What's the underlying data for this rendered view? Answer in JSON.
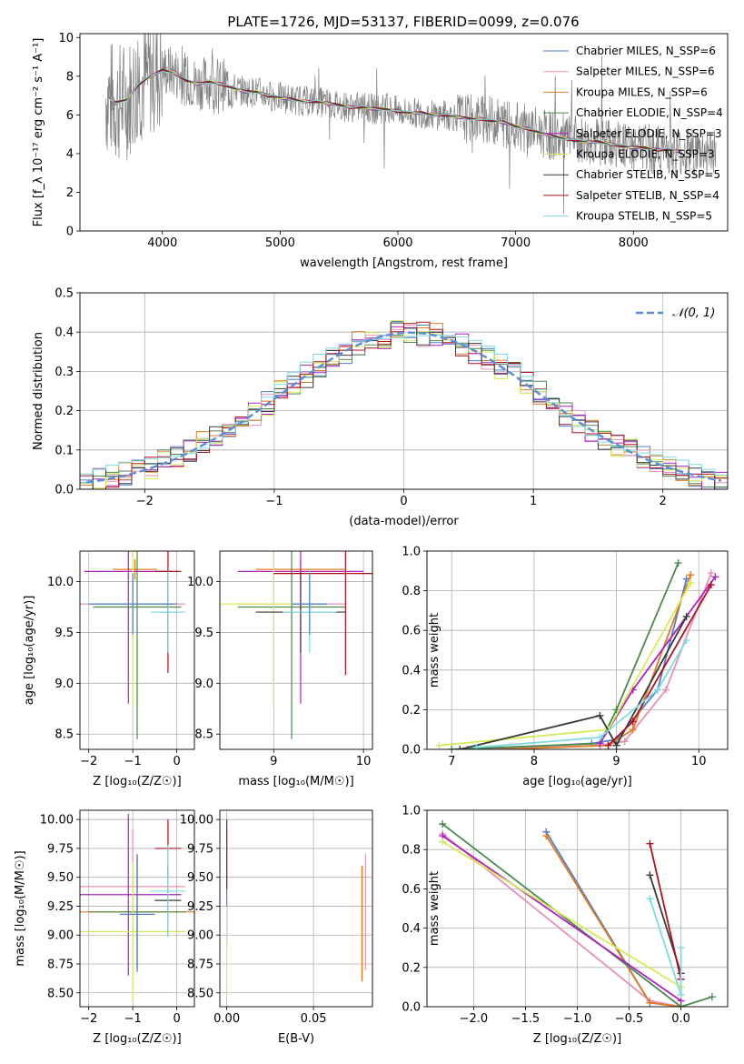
{
  "chart_data": [
    {
      "type": "line",
      "title": "PLATE=1726, MJD=53137, FIBERID=0099, z=0.076",
      "xlabel": "wavelength [Angstrom, rest frame]",
      "ylabel": "Flux [f_λ 10⁻¹⁷ erg cm⁻² s⁻¹ A⁻¹]",
      "xlim": [
        3300,
        8800
      ],
      "ylim": [
        0,
        10.2
      ],
      "xticks": [
        "4000",
        "5000",
        "6000",
        "7000",
        "8000"
      ],
      "yticks": [
        "0",
        "2",
        "4",
        "6",
        "8",
        "10"
      ],
      "legend_position": "top-right",
      "legend": [
        {
          "label": "Chabrier MILES, N_SSP=6",
          "color": "#4f7fd0"
        },
        {
          "label": "Salpeter MILES, N_SSP=6",
          "color": "#e890b8"
        },
        {
          "label": "Kroupa MILES, N_SSP=6",
          "color": "#e07c20"
        },
        {
          "label": "Chabrier ELODIE, N_SSP=4",
          "color": "#4a8a50"
        },
        {
          "label": "Salpeter ELODIE, N_SSP=3",
          "color": "#b020c0"
        },
        {
          "label": "Kroupa ELODIE, N_SSP=3",
          "color": "#d4ec58"
        },
        {
          "label": "Chabrier STELIB, N_SSP=5",
          "color": "#3a3a3a"
        },
        {
          "label": "Salpeter STELIB, N_SSP=4",
          "color": "#b01020"
        },
        {
          "label": "Kroupa STELIB, N_SSP=5",
          "color": "#7fdbe0"
        }
      ],
      "data_color": "#808080",
      "x": [
        3550,
        3600,
        3700,
        3800,
        3900,
        4000,
        4100,
        4200,
        4300,
        4400,
        4500,
        4600,
        4700,
        4800,
        4900,
        5000,
        5100,
        5200,
        5300,
        5400,
        5500,
        5600,
        5700,
        5800,
        5900,
        6000,
        6100,
        6200,
        6300,
        6400,
        6500,
        6600,
        6700,
        6800,
        6900,
        7000,
        7100,
        7200,
        7300,
        7400,
        7500,
        7600,
        7700,
        7800,
        7900,
        8000,
        8100,
        8200,
        8300,
        8400
      ],
      "model": [
        6.9,
        6.6,
        6.8,
        7.6,
        8.0,
        8.3,
        8.2,
        7.8,
        7.6,
        7.7,
        7.6,
        7.4,
        7.2,
        7.2,
        7.0,
        6.9,
        6.8,
        6.7,
        6.7,
        6.6,
        6.5,
        6.4,
        6.4,
        6.3,
        6.3,
        6.2,
        6.1,
        6.1,
        6.0,
        6.0,
        5.9,
        5.8,
        5.8,
        5.7,
        5.6,
        5.4,
        5.3,
        5.1,
        4.9,
        4.8,
        4.7,
        4.6,
        4.6,
        4.5,
        4.4,
        4.3,
        4.3,
        4.2,
        4.2,
        4.1
      ]
    },
    {
      "type": "step",
      "xlabel": "(data-model)/error",
      "ylabel": "Normed distribution",
      "xlim": [
        -2.5,
        2.5
      ],
      "ylim": [
        0,
        0.5
      ],
      "xticks": [
        "−2",
        "−1",
        "0",
        "1",
        "2"
      ],
      "yticks": [
        "0.0",
        "0.1",
        "0.2",
        "0.3",
        "0.4",
        "0.5"
      ],
      "legend_position": "top-right",
      "reference_label": "𝒩(0, 1)",
      "reference_color": "#5b8fd8",
      "bin_width": 0.1,
      "bin_start": -2.5,
      "reference_normal": [
        0.018,
        0.022,
        0.028,
        0.035,
        0.044,
        0.054,
        0.066,
        0.079,
        0.095,
        0.113,
        0.13,
        0.15,
        0.171,
        0.194,
        0.218,
        0.242,
        0.266,
        0.29,
        0.312,
        0.333,
        0.352,
        0.368,
        0.381,
        0.391,
        0.397,
        0.399,
        0.397,
        0.391,
        0.381,
        0.368,
        0.352,
        0.333,
        0.312,
        0.29,
        0.266,
        0.242,
        0.218,
        0.194,
        0.171,
        0.15,
        0.13,
        0.113,
        0.095,
        0.079,
        0.066,
        0.054,
        0.044,
        0.035,
        0.028,
        0.022
      ]
    },
    {
      "type": "scatter",
      "xlabel": "Z [log₁₀(Z/Z☉)]",
      "ylabel": "age [log₁₀(age/yr)]",
      "xlim": [
        -2.2,
        0.4
      ],
      "ylim": [
        8.35,
        10.3
      ],
      "xticks": [
        "−2",
        "−1",
        "0"
      ],
      "yticks": [
        "8.5",
        "9.0",
        "9.5",
        "10.0"
      ],
      "points": [
        {
          "x": -1.0,
          "y": 9.78,
          "xerr": 1.2,
          "yerr": 0.3,
          "color": "#e890b8"
        },
        {
          "x": -0.95,
          "y": 10.12,
          "xerr": 0.5,
          "yerr": 0.1,
          "color": "#e07c20"
        },
        {
          "x": -0.9,
          "y": 9.75,
          "xerr": 1.0,
          "yerr": 1.3,
          "color": "#4a8a50"
        },
        {
          "x": -1.1,
          "y": 10.1,
          "xerr": 1.0,
          "yerr": 1.3,
          "color": "#b020c0"
        },
        {
          "x": -1.0,
          "y": 9.78,
          "xerr": 1.0,
          "yerr": 1.0,
          "color": "#d4ec58"
        },
        {
          "x": -0.2,
          "y": 9.7,
          "xerr": 0.2,
          "yerr": 0.4,
          "color": "#3a3a3a"
        },
        {
          "x": -0.2,
          "y": 10.1,
          "xerr": 0.3,
          "yerr": 1.0,
          "color": "#b01020"
        },
        {
          "x": -0.2,
          "y": 9.7,
          "xerr": 0.4,
          "yerr": 0.4,
          "color": "#7fdbe0"
        },
        {
          "x": -1.0,
          "y": 9.78,
          "xerr": 1.0,
          "yerr": 0.3,
          "color": "#4f7fd0"
        }
      ]
    },
    {
      "type": "scatter",
      "xlabel": "mass [log₁₀(M/M☉)]",
      "ylabel": "",
      "xlim": [
        8.4,
        10.1
      ],
      "ylim": [
        8.35,
        10.3
      ],
      "xticks": [
        "9",
        "10"
      ],
      "yticks": [
        "8.5",
        "9.0",
        "9.5",
        "10.0"
      ],
      "points": [
        {
          "x": 9.2,
          "y": 9.78,
          "xerr": 0.6,
          "yerr": 0.3,
          "color": "#e890b8"
        },
        {
          "x": 9.3,
          "y": 10.12,
          "xerr": 0.5,
          "yerr": 0.1,
          "color": "#e07c20"
        },
        {
          "x": 9.2,
          "y": 9.75,
          "xerr": 0.6,
          "yerr": 1.3,
          "color": "#4a8a50"
        },
        {
          "x": 9.3,
          "y": 10.1,
          "xerr": 0.7,
          "yerr": 1.3,
          "color": "#b020c0"
        },
        {
          "x": 9.0,
          "y": 9.78,
          "xerr": 0.6,
          "yerr": 1.0,
          "color": "#d4ec58"
        },
        {
          "x": 9.3,
          "y": 9.7,
          "xerr": 0.5,
          "yerr": 0.4,
          "color": "#3a3a3a"
        },
        {
          "x": 9.8,
          "y": 10.08,
          "xerr": 0.8,
          "yerr": 1.0,
          "color": "#b01020"
        },
        {
          "x": 9.4,
          "y": 9.7,
          "xerr": 0.3,
          "yerr": 0.4,
          "color": "#7fdbe0"
        },
        {
          "x": 9.4,
          "y": 9.78,
          "xerr": 0.2,
          "yerr": 0.3,
          "color": "#4f7fd0"
        }
      ]
    },
    {
      "type": "line",
      "xlabel": "age [log₁₀(age/yr)]",
      "ylabel": "mass weight",
      "xlim": [
        6.7,
        10.35
      ],
      "ylim": [
        0,
        1
      ],
      "xticks": [
        "7",
        "8",
        "9",
        "10"
      ],
      "yticks": [
        "0.0",
        "0.2",
        "0.4",
        "0.6",
        "0.8",
        "1.0"
      ],
      "series": [
        {
          "color": "#4f7fd0",
          "x": [
            7.2,
            8.7,
            9.0,
            9.5,
            9.85
          ],
          "y": [
            0.0,
            0.03,
            0.05,
            0.3,
            0.86
          ]
        },
        {
          "color": "#e890b8",
          "x": [
            7.5,
            8.8,
            9.1,
            9.6,
            10.15
          ],
          "y": [
            0.0,
            0.02,
            0.04,
            0.3,
            0.89
          ]
        },
        {
          "color": "#e07c20",
          "x": [
            7.6,
            8.9,
            9.2,
            9.9
          ],
          "y": [
            0.0,
            0.02,
            0.1,
            0.88
          ]
        },
        {
          "color": "#4a8a50",
          "x": [
            7.0,
            8.8,
            9.0,
            9.75
          ],
          "y": [
            0.0,
            0.03,
            0.2,
            0.94
          ]
        },
        {
          "color": "#b020c0",
          "x": [
            8.8,
            9.2,
            10.2
          ],
          "y": [
            0.03,
            0.3,
            0.87
          ]
        },
        {
          "color": "#d4ec58",
          "x": [
            6.85,
            8.9,
            9.9
          ],
          "y": [
            0.02,
            0.1,
            0.84
          ]
        },
        {
          "color": "#3a3a3a",
          "x": [
            7.1,
            8.8,
            9.0,
            9.85
          ],
          "y": [
            0.0,
            0.17,
            0.02,
            0.67
          ]
        },
        {
          "color": "#b01020",
          "x": [
            8.9,
            9.2,
            10.15
          ],
          "y": [
            0.02,
            0.14,
            0.83
          ]
        },
        {
          "color": "#7fdbe0",
          "x": [
            7.3,
            8.8,
            9.5,
            9.85
          ],
          "y": [
            0.01,
            0.06,
            0.3,
            0.55
          ]
        }
      ]
    },
    {
      "type": "scatter",
      "xlabel": "Z [log₁₀(Z/Z☉)]",
      "ylabel": "mass [log₁₀(M/M☉)]",
      "xlim": [
        -2.2,
        0.4
      ],
      "ylim": [
        8.38,
        10.08
      ],
      "xticks": [
        "−2",
        "−1",
        "0"
      ],
      "yticks": [
        "8.50",
        "8.75",
        "9.00",
        "9.25",
        "9.50",
        "9.75",
        "10.00"
      ],
      "points": [
        {
          "x": -1.0,
          "y": 9.42,
          "xerr": 1.2,
          "yerr": 0.5,
          "color": "#e890b8"
        },
        {
          "x": -0.9,
          "y": 9.2,
          "xerr": 1.3,
          "yerr": 0.5,
          "color": "#e07c20"
        },
        {
          "x": -0.9,
          "y": 9.2,
          "xerr": 1.1,
          "yerr": 0.5,
          "color": "#4a8a50"
        },
        {
          "x": -1.1,
          "y": 9.35,
          "xerr": 1.2,
          "yerr": 0.7,
          "color": "#b020c0"
        },
        {
          "x": -1.0,
          "y": 9.03,
          "xerr": 1.2,
          "yerr": 0.6,
          "color": "#d4ec58"
        },
        {
          "x": -0.2,
          "y": 9.3,
          "xerr": 0.3,
          "yerr": 0.3,
          "color": "#3a3a3a"
        },
        {
          "x": -0.2,
          "y": 9.75,
          "xerr": 0.3,
          "yerr": 0.25,
          "color": "#b01020"
        },
        {
          "x": -0.2,
          "y": 9.38,
          "xerr": 0.4,
          "yerr": 0.4,
          "color": "#7fdbe0"
        },
        {
          "x": -0.9,
          "y": 9.18,
          "xerr": 0.4,
          "yerr": 0.5,
          "color": "#4f7fd0"
        }
      ]
    },
    {
      "type": "scatter",
      "xlabel": "E(B-V)",
      "ylabel": "",
      "xlim": [
        -0.004,
        0.084
      ],
      "ylim": [
        8.38,
        10.08
      ],
      "xticks": [
        "0.00",
        "0.05"
      ],
      "yticks": [
        "8.50",
        "8.75",
        "9.00",
        "9.25",
        "9.50",
        "9.75",
        "10.00"
      ],
      "points": [
        {
          "x": 0.0,
          "y": 9.42,
          "xerr": 0,
          "yerr": 0.5,
          "color": "#4f7fd0"
        },
        {
          "x": 0.0,
          "y": 9.7,
          "xerr": 0,
          "yerr": 0.3,
          "color": "#b01020"
        },
        {
          "x": 0.0,
          "y": 8.85,
          "xerr": 0,
          "yerr": 0.4,
          "color": "#d4ec58"
        },
        {
          "x": 0.078,
          "y": 9.1,
          "xerr": 0,
          "yerr": 0.5,
          "color": "#4f7fd0"
        },
        {
          "x": 0.078,
          "y": 9.1,
          "xerr": 0,
          "yerr": 0.5,
          "color": "#e07c20"
        },
        {
          "x": 0.08,
          "y": 9.2,
          "xerr": 0,
          "yerr": 0.5,
          "color": "#e890b8"
        }
      ]
    },
    {
      "type": "line",
      "xlabel": "Z [log₁₀(Z/Z☉)]",
      "ylabel": "mass weight",
      "xlim": [
        -2.45,
        0.45
      ],
      "ylim": [
        0,
        1
      ],
      "xticks": [
        "−2.0",
        "−1.5",
        "−1.0",
        "−0.5",
        "0.0"
      ],
      "yticks": [
        "0.0",
        "0.2",
        "0.4",
        "0.6",
        "0.8",
        "1.0"
      ],
      "series": [
        {
          "color": "#4f7fd0",
          "x": [
            -1.3,
            -0.3,
            0.0
          ],
          "y": [
            0.89,
            0.02,
            0.0
          ]
        },
        {
          "color": "#e890b8",
          "x": [
            -2.3,
            -0.3,
            0.0
          ],
          "y": [
            0.88,
            0.03,
            0.0
          ]
        },
        {
          "color": "#e07c20",
          "x": [
            -1.3,
            -0.3,
            0.0
          ],
          "y": [
            0.87,
            0.02,
            0.0
          ]
        },
        {
          "color": "#4a8a50",
          "x": [
            -2.3,
            0.0,
            0.3
          ],
          "y": [
            0.93,
            0.0,
            0.05
          ]
        },
        {
          "color": "#b020c0",
          "x": [
            -2.3,
            0.0
          ],
          "y": [
            0.87,
            0.03
          ]
        },
        {
          "color": "#d4ec58",
          "x": [
            -2.3,
            0.0
          ],
          "y": [
            0.84,
            0.1
          ]
        },
        {
          "color": "#3a3a3a",
          "x": [
            -0.3,
            0.0
          ],
          "y": [
            0.67,
            0.17
          ]
        },
        {
          "color": "#b01020",
          "x": [
            -0.3,
            0.0
          ],
          "y": [
            0.83,
            0.14
          ]
        },
        {
          "color": "#7fdbe0",
          "x": [
            -0.3,
            0.0,
            0.0
          ],
          "y": [
            0.55,
            0.06,
            0.3
          ]
        }
      ]
    }
  ]
}
